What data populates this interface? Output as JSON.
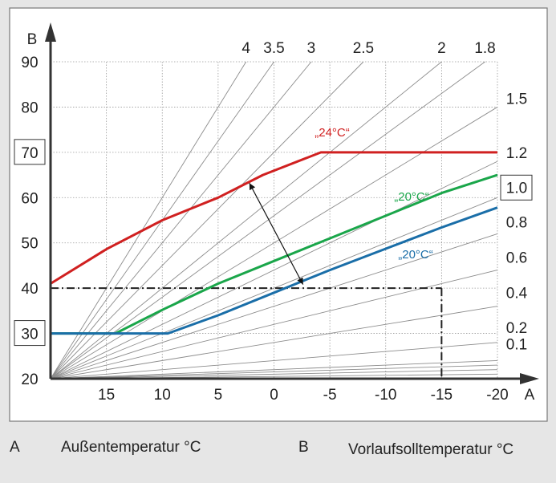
{
  "chart_data": {
    "type": "line",
    "xaxis": {
      "label": "A",
      "range": [
        20,
        -20
      ],
      "ticks": [
        15,
        10,
        5,
        0,
        -5,
        -10,
        -15,
        -20
      ],
      "tick_labels": [
        "15",
        "10",
        "5",
        "0",
        "-5",
        "-10",
        "-15",
        "-20"
      ]
    },
    "yaxis": {
      "label": "B",
      "range": [
        20,
        90
      ],
      "ticks": [
        20,
        30,
        40,
        50,
        60,
        70,
        80,
        90
      ],
      "tick_labels": [
        "20",
        "30",
        "40",
        "50",
        "60",
        "70",
        "80",
        "90"
      ],
      "boxed_labels": [
        "30",
        "70"
      ]
    },
    "grid": true,
    "heating_curves": {
      "origin": [
        20,
        20
      ],
      "slopes": [
        4,
        3.5,
        3,
        2.5,
        2,
        1.8,
        1.5,
        1.2,
        1.0,
        0.8,
        0.6,
        0.4,
        0.2,
        0.1
      ],
      "extra_lines": 3,
      "top_labels": [
        "4",
        "3.5",
        "3",
        "2.5",
        "2",
        "1.8"
      ],
      "right_labels": [
        "1.5",
        "1.2",
        "1.0",
        "0.8",
        "0.6",
        "0.4",
        "0.2",
        "0.1"
      ],
      "boxed_label": "1.0"
    },
    "series": [
      {
        "name": "„24°C“",
        "color": "#d02020",
        "points": [
          [
            20,
            41
          ],
          [
            15,
            48.6
          ],
          [
            10,
            55
          ],
          [
            5,
            60
          ],
          [
            1,
            65
          ],
          [
            -4.2,
            70
          ],
          [
            -20,
            70
          ]
        ]
      },
      {
        "name": "„20°C“",
        "color": "#1aa64a",
        "points": [
          [
            20,
            30
          ],
          [
            14.2,
            30
          ],
          [
            10,
            35.2
          ],
          [
            5,
            41
          ],
          [
            0,
            46
          ],
          [
            -5,
            51
          ],
          [
            -10,
            56
          ],
          [
            -15,
            61
          ],
          [
            -20,
            65
          ]
        ]
      },
      {
        "name": "„20°C“",
        "color": "#1a6ea8",
        "points": [
          [
            20,
            30
          ],
          [
            9.5,
            30
          ],
          [
            5,
            34
          ],
          [
            0,
            39
          ],
          [
            -5,
            44
          ],
          [
            -10,
            48.7
          ],
          [
            -15,
            53.4
          ],
          [
            -20,
            57.8
          ]
        ]
      }
    ],
    "reference_lines": {
      "horizontal_y": 40,
      "vertical_x": -15
    },
    "arrow": {
      "from": [
        2.2,
        63.2
      ],
      "to": [
        -2.6,
        40.8
      ]
    }
  },
  "legend": {
    "a_key": "A",
    "a_text": "Außentemperatur °C",
    "b_key": "B",
    "b_text": "Vorlaufsolltemperatur °C"
  }
}
